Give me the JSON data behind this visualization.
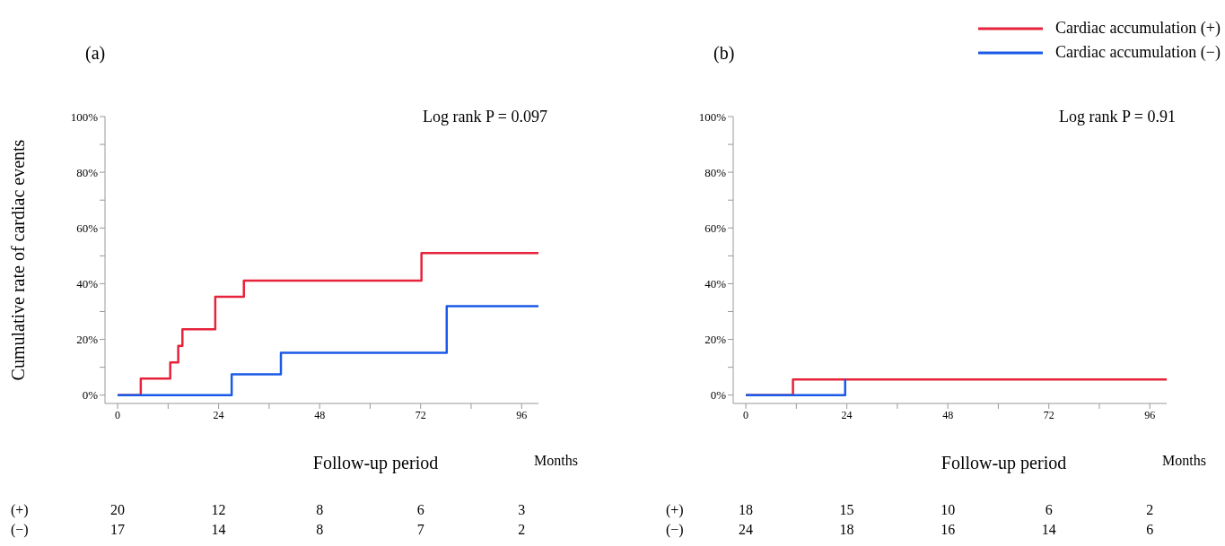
{
  "chart_data": [
    {
      "type": "step",
      "title": "(a)",
      "xlabel": "Follow-up period",
      "ylabel": "Cumulative rate of cardiac events",
      "series": [
        {
          "color": "#e6233a",
          "x": [
            0,
            5.5,
            12.5,
            14.4,
            15.4,
            23.2,
            30,
            72.2,
            100
          ],
          "values": [
            0,
            5.9,
            11.7,
            17.7,
            23.6,
            35.3,
            41.1,
            51,
            51
          ]
        },
        {
          "color": "#1a5ae6",
          "x": [
            0,
            27.1,
            38.8,
            78.2,
            100
          ],
          "values": [
            0,
            7.5,
            15.2,
            31.9,
            31.9
          ]
        }
      ],
      "xlim": [
        -3,
        100
      ],
      "xticks": [
        0,
        {
          "value": 12,
          "label": null
        },
        24,
        {
          "value": 36,
          "label": null
        },
        48,
        {
          "value": 60,
          "label": null
        },
        72,
        {
          "value": 84,
          "label": null
        },
        96
      ],
      "ylim": [
        -3,
        100
      ],
      "yticks": [
        {
          "value": 0,
          "label": "0%"
        },
        {
          "value": 10,
          "label": null
        },
        {
          "value": 20,
          "label": "20%"
        },
        {
          "value": 30,
          "label": null
        },
        {
          "value": 40,
          "label": "40%"
        },
        {
          "value": 50,
          "label": null
        },
        {
          "value": 60,
          "label": "60%"
        },
        {
          "value": 70,
          "label": null
        },
        {
          "value": 80,
          "label": "80%"
        },
        {
          "value": 90,
          "label": null
        },
        {
          "value": 100,
          "label": "100%"
        }
      ],
      "grid": false,
      "marker": "none",
      "line_style": "solid",
      "annotations": [
        "Log rank P = 0.097",
        "Months",
        "(+)",
        "20",
        "12",
        "8",
        "6",
        "3",
        "(−)",
        "17",
        "14",
        "8",
        "7",
        "2"
      ]
    },
    {
      "type": "step",
      "title": "(b)",
      "xlabel": "Follow-up period",
      "series": [
        {
          "name": "Cardiac accumulation (+)",
          "color": "#e6233a",
          "x": [
            0,
            11.2,
            100
          ],
          "values": [
            0,
            5.6,
            5.6
          ]
        },
        {
          "name": "Cardiac accumulation (−)",
          "color": "#1a5ae6",
          "x": [
            0,
            23.6
          ],
          "values": [
            0,
            5.6
          ]
        }
      ],
      "xlim": [
        -3,
        100
      ],
      "xticks": [
        0,
        {
          "value": 12,
          "label": null
        },
        24,
        {
          "value": 36,
          "label": null
        },
        48,
        {
          "value": 60,
          "label": null
        },
        72,
        {
          "value": 84,
          "label": null
        },
        96
      ],
      "ylim": [
        -3,
        100
      ],
      "yticks": [
        {
          "value": 0,
          "label": "0%"
        },
        {
          "value": 10,
          "label": null
        },
        {
          "value": 20,
          "label": "20%"
        },
        {
          "value": 30,
          "label": null
        },
        {
          "value": 40,
          "label": "40%"
        },
        {
          "value": 50,
          "label": null
        },
        {
          "value": 60,
          "label": "60%"
        },
        {
          "value": 70,
          "label": null
        },
        {
          "value": 80,
          "label": "80%"
        },
        {
          "value": 90,
          "label": null
        },
        {
          "value": 100,
          "label": "100%"
        }
      ],
      "grid": false,
      "marker": "none",
      "line_style": "solid",
      "legend": "top right",
      "annotations": [
        "Log rank P = 0.91",
        "Months",
        "(+)",
        "18",
        "15",
        "10",
        "6",
        "2",
        "(−)",
        "24",
        "18",
        "16",
        "14",
        "6"
      ]
    }
  ]
}
